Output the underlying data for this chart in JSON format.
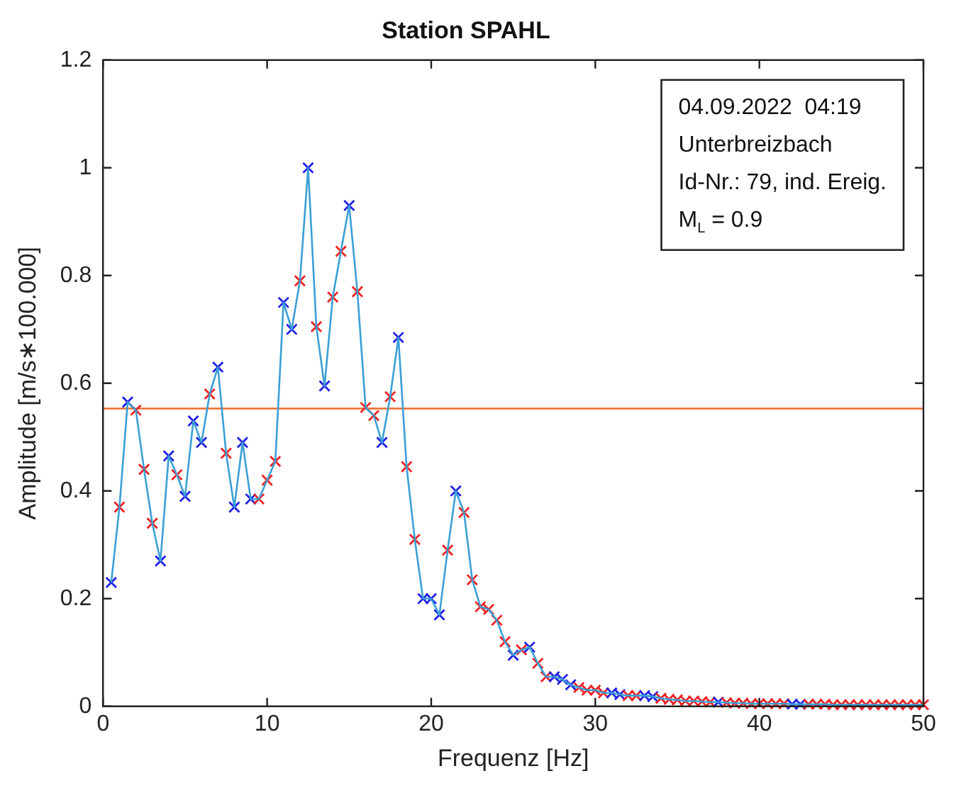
{
  "chart_data": {
    "type": "line",
    "title": "Station SPAHL",
    "xlabel": "Frequenz [Hz]",
    "ylabel": "Amplitude [m/s∗100.000]",
    "x": [
      0.5,
      1,
      1.5,
      2,
      2.5,
      3,
      3.5,
      4,
      4.5,
      5,
      5.5,
      6,
      6.5,
      7,
      7.5,
      8,
      8.5,
      9,
      9.5,
      10,
      10.5,
      11,
      11.5,
      12,
      12.5,
      13,
      13.5,
      14,
      14.5,
      15,
      15.5,
      16,
      16.5,
      17,
      17.5,
      18,
      18.5,
      19,
      19.5,
      20,
      20.5,
      21,
      21.5,
      22,
      22.5,
      23,
      23.5,
      24,
      24.5,
      25,
      25.5,
      26,
      26.5,
      27,
      27.5,
      28,
      28.5,
      29,
      29.5,
      30,
      30.5,
      31,
      31.5,
      32,
      32.5,
      33,
      33.5,
      34,
      34.5,
      35,
      35.5,
      36,
      36.5,
      37,
      37.5,
      38,
      38.5,
      39,
      39.5,
      40,
      40.5,
      41,
      41.5,
      42,
      42.5,
      43,
      43.5,
      44,
      44.5,
      45,
      45.5,
      46,
      46.5,
      47,
      47.5,
      48,
      48.5,
      49,
      49.5,
      50
    ],
    "series": [
      {
        "color": "#3a9fd6",
        "values": [
          0.23,
          0.37,
          0.565,
          0.55,
          0.44,
          0.34,
          0.27,
          0.465,
          0.43,
          0.39,
          0.53,
          0.49,
          0.58,
          0.63,
          0.47,
          0.37,
          0.49,
          0.385,
          0.385,
          0.42,
          0.455,
          0.75,
          0.7,
          0.79,
          1.0,
          0.705,
          0.595,
          0.76,
          0.845,
          0.93,
          0.77,
          0.555,
          0.54,
          0.49,
          0.575,
          0.685,
          0.445,
          0.31,
          0.2,
          0.2,
          0.17,
          0.29,
          0.4,
          0.36,
          0.235,
          0.185,
          0.18,
          0.16,
          0.12,
          0.095,
          0.105,
          0.11,
          0.08,
          0.055,
          0.055,
          0.05,
          0.04,
          0.035,
          0.03,
          0.03,
          0.025,
          0.025,
          0.022,
          0.02,
          0.02,
          0.02,
          0.018,
          0.015,
          0.013,
          0.012,
          0.01,
          0.01,
          0.009,
          0.008,
          0.008,
          0.007,
          0.006,
          0.006,
          0.005,
          0.005,
          0.005,
          0.005,
          0.005,
          0.004,
          0.004,
          0.004,
          0.004,
          0.004,
          0.003,
          0.003,
          0.003,
          0.003,
          0.003,
          0.003,
          0.003,
          0.003,
          0.003,
          0.003,
          0.003,
          0.003
        ],
        "colors": [
          "#1f1fe6",
          "#ee2222",
          "#1f1fe6",
          "#ee2222",
          "#ee2222",
          "#ee2222",
          "#1f1fe6",
          "#1f1fe6",
          "#ee2222",
          "#1f1fe6",
          "#1f1fe6",
          "#1f1fe6",
          "#ee2222",
          "#1f1fe6",
          "#ee2222",
          "#1f1fe6",
          "#1f1fe6",
          "#1f1fe6",
          "#ee2222",
          "#ee2222",
          "#ee2222",
          "#1f1fe6",
          "#1f1fe6",
          "#ee2222",
          "#1f1fe6",
          "#ee2222",
          "#1f1fe6",
          "#ee2222",
          "#ee2222",
          "#1f1fe6",
          "#ee2222",
          "#ee2222",
          "#ee2222",
          "#1f1fe6",
          "#ee2222",
          "#1f1fe6",
          "#ee2222",
          "#ee2222",
          "#1f1fe6",
          "#1f1fe6",
          "#1f1fe6",
          "#ee2222",
          "#1f1fe6",
          "#ee2222",
          "#ee2222",
          "#ee2222",
          "#ee2222",
          "#ee2222",
          "#ee2222",
          "#1f1fe6",
          "#ee2222",
          "#1f1fe6",
          "#ee2222",
          "#ee2222",
          "#1f1fe6",
          "#1f1fe6",
          "#1f1fe6",
          "#ee2222",
          "#ee2222",
          "#ee2222",
          "#ee2222",
          "#1f1fe6",
          "#1f1fe6",
          "#ee2222",
          "#ee2222",
          "#1f1fe6",
          "#1f1fe6",
          "#ee2222",
          "#ee2222",
          "#ee2222",
          "#ee2222",
          "#ee2222",
          "#ee2222",
          "#ee2222",
          "#1f1fe6",
          "#ee2222",
          "#ee2222",
          "#ee2222",
          "#ee2222",
          "#ee2222",
          "#ee2222",
          "#ee2222",
          "#ee2222",
          "#1f1fe6",
          "#1f1fe6",
          "#ee2222",
          "#ee2222",
          "#ee2222",
          "#ee2222",
          "#ee2222",
          "#ee2222",
          "#ee2222",
          "#ee2222",
          "#ee2222",
          "#ee2222",
          "#ee2222",
          "#ee2222",
          "#ee2222",
          "#ee2222",
          "#ee2222"
        ]
      }
    ],
    "xlim": [
      0,
      50
    ],
    "xticks": [
      0,
      10,
      20,
      30,
      40,
      50
    ],
    "ylim": [
      0,
      1.2
    ],
    "yticks": [
      0,
      0.2,
      0.4,
      0.6,
      0.8,
      1,
      1.2
    ],
    "ref_lines": [
      {
        "axis": "y",
        "value": 0.553,
        "color": "#f06a2a"
      }
    ],
    "annotations": [
      "04.09.2022  04:19",
      "Unterbreizbach",
      "Id-Nr.: 79, ind. Ereig.",
      "M$_{L}$ = 0.9"
    ],
    "marker": "cross",
    "line_style": "solid",
    "legend": false,
    "grid": false
  }
}
